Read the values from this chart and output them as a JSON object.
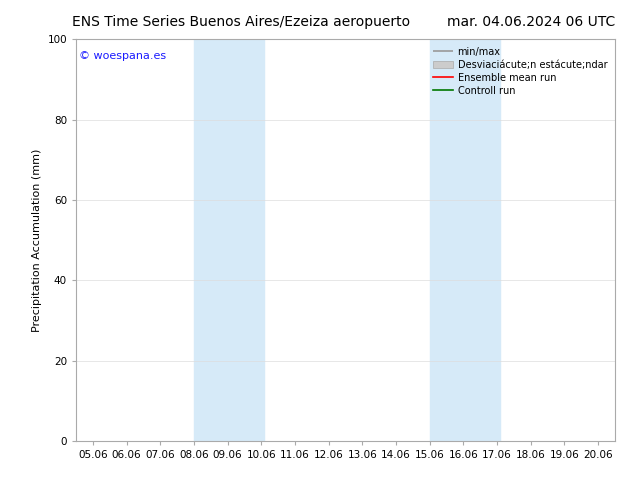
{
  "title_left": "ENS Time Series Buenos Aires/Ezeiza aeropuerto",
  "title_right": "mar. 04.06.2024 06 UTC",
  "ylabel": "Precipitation Accumulation (mm)",
  "ylim": [
    0,
    100
  ],
  "yticks": [
    0,
    20,
    40,
    60,
    80,
    100
  ],
  "xlim": [
    4.5,
    20.5
  ],
  "xticks": [
    5,
    6,
    7,
    8,
    9,
    10,
    11,
    12,
    13,
    14,
    15,
    16,
    17,
    18,
    19,
    20
  ],
  "xticklabels": [
    "05.06",
    "06.06",
    "07.06",
    "08.06",
    "09.06",
    "10.06",
    "11.06",
    "12.06",
    "13.06",
    "14.06",
    "15.06",
    "16.06",
    "17.06",
    "18.06",
    "19.06",
    "20.06"
  ],
  "shade_bands": [
    [
      8.0,
      9.0
    ],
    [
      9.0,
      10.08
    ],
    [
      15.0,
      16.0
    ],
    [
      16.0,
      17.08
    ]
  ],
  "shade_colors": [
    "#cce5f5",
    "#d8eef9",
    "#cce5f5",
    "#d8eef9"
  ],
  "shade_color": "#d6eaf8",
  "copyright_text": "© woespana.es",
  "copyright_color": "#1a1aff",
  "legend_minmax_color": "#999999",
  "legend_std_color": "#cccccc",
  "legend_ensemble_color": "#ff0000",
  "legend_control_color": "#007700",
  "bg_color": "#ffffff",
  "grid_color": "#dddddd",
  "title_fontsize": 10,
  "tick_fontsize": 7.5,
  "ylabel_fontsize": 8
}
